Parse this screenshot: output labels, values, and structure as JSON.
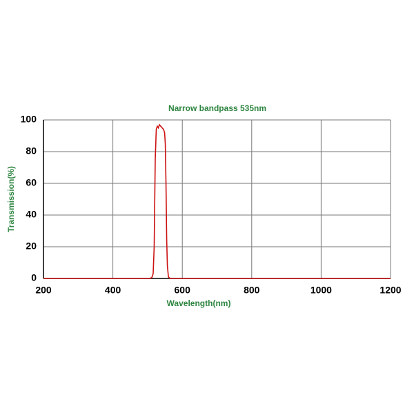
{
  "chart_data": {
    "type": "line",
    "title": "Narrow bandpass 535nm",
    "x_label": "Wavelength(nm)",
    "y_label": "Transmission(%)",
    "x": [
      200,
      505,
      512,
      516,
      519,
      522,
      525,
      528,
      531,
      534,
      538,
      542,
      546,
      549,
      551,
      553,
      555,
      557,
      560,
      565,
      1200
    ],
    "series": [
      {
        "name": "Narrow bandpass 535nm",
        "color": "#cc1111",
        "values": [
          0,
          0,
          0.5,
          3,
          20,
          75,
          94,
          96,
          95,
          97,
          96,
          95,
          94,
          92,
          85,
          60,
          25,
          8,
          1,
          0,
          0
        ]
      }
    ],
    "xlim": [
      200,
      1200
    ],
    "xticks": [
      200,
      400,
      600,
      800,
      1000,
      1200
    ],
    "ylim": [
      0,
      100
    ],
    "yticks": [
      0,
      20,
      40,
      60,
      80,
      100
    ],
    "grid": true,
    "label_color": "#2e8540"
  }
}
